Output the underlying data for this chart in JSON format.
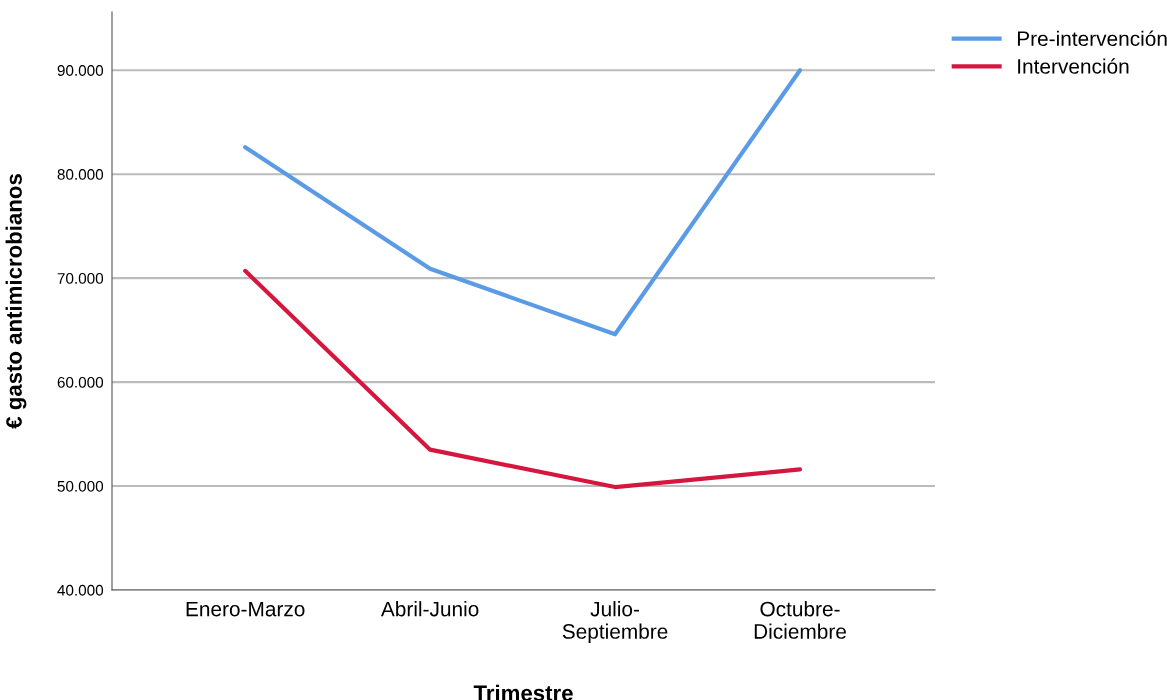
{
  "chart_data": {
    "type": "line",
    "xlabel": "Trimestre",
    "ylabel": "€ gasto antimicrobianos",
    "categories": [
      "Enero-Marzo",
      "Abril-Junio",
      "Julio-\nSeptiembre",
      "Octubre-\nDiciembre"
    ],
    "series": [
      {
        "name": "Pre-intervención",
        "color": "#5b9be6",
        "values": [
          82600,
          70900,
          64600,
          90000
        ]
      },
      {
        "name": "Intervención",
        "color": "#d5173f",
        "values": [
          70700,
          53500,
          49900,
          51600
        ]
      }
    ],
    "ylim": [
      40000,
      95600
    ],
    "yticks": [
      {
        "value": 40000,
        "label": "40.000"
      },
      {
        "value": 50000,
        "label": "50.000"
      },
      {
        "value": 60000,
        "label": "60.000"
      },
      {
        "value": 70000,
        "label": "70.000"
      },
      {
        "value": 80000,
        "label": "80.000"
      },
      {
        "value": 90000,
        "label": "90.000"
      }
    ],
    "grid": "y",
    "legend": "top right",
    "marker": "none",
    "line_style": "solid"
  }
}
